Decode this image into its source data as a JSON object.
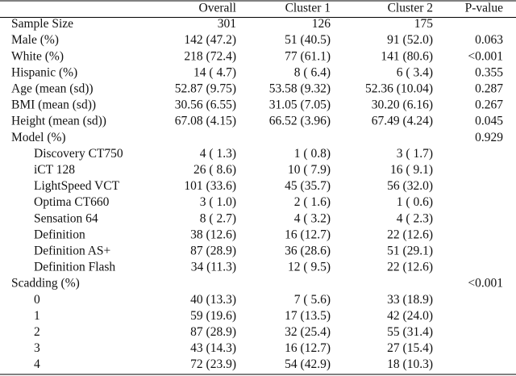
{
  "table": {
    "columns": [
      "Overall",
      "Cluster 1",
      "Cluster 2",
      "P-value"
    ],
    "rows": [
      {
        "label": "Sample Size",
        "cells": [
          "301",
          "126",
          "175",
          null
        ]
      },
      {
        "label": "Male (%)",
        "cells": [
          "142 (47.2)",
          "51 (40.5)",
          "91 (52.0)",
          "0.063"
        ]
      },
      {
        "label": "White (%)",
        "cells": [
          "218 (72.4)",
          "77 (61.1)",
          "141 (80.6)",
          "<0.001"
        ]
      },
      {
        "label": "Hispanic (%)",
        "cells": [
          "14 ( 4.7)",
          "8 ( 6.4)",
          "6 ( 3.4)",
          "0.355"
        ]
      },
      {
        "label": "Age (mean (sd))",
        "cells": [
          "52.87 (9.75)",
          "53.58 (9.32)",
          "52.36 (10.04)",
          "0.287"
        ]
      },
      {
        "label": "BMI (mean (sd))",
        "cells": [
          "30.56 (6.55)",
          "31.05 (7.05)",
          "30.20 (6.16)",
          "0.267"
        ]
      },
      {
        "label": "Height (mean (sd))",
        "cells": [
          "67.08 (4.15)",
          "66.52 (3.96)",
          "67.49 (4.24)",
          "0.045"
        ]
      },
      {
        "label": "Model (%)",
        "cells": [
          null,
          null,
          null,
          "0.929"
        ],
        "sub_rows": [
          {
            "label": "Discovery CT750",
            "cells": [
              "4 ( 1.3)",
              "1 ( 0.8)",
              "3 ( 1.7)",
              null
            ]
          },
          {
            "label": "iCT 128",
            "cells": [
              "26 ( 8.6)",
              "10 ( 7.9)",
              "16 ( 9.1)",
              null
            ]
          },
          {
            "label": "LightSpeed VCT",
            "cells": [
              "101 (33.6)",
              "45 (35.7)",
              "56 (32.0)",
              null
            ]
          },
          {
            "label": "Optima CT660",
            "cells": [
              "3 ( 1.0)",
              "2 ( 1.6)",
              "1 ( 0.6)",
              null
            ]
          },
          {
            "label": "Sensation 64",
            "cells": [
              "8 ( 2.7)",
              "4 ( 3.2)",
              "4 ( 2.3)",
              null
            ]
          },
          {
            "label": "Definition",
            "cells": [
              "38 (12.6)",
              "16 (12.7)",
              "22 (12.6)",
              null
            ]
          },
          {
            "label": "Definition AS+",
            "cells": [
              "87 (28.9)",
              "36 (28.6)",
              "51 (29.1)",
              null
            ]
          },
          {
            "label": "Definition Flash",
            "cells": [
              "34 (11.3)",
              "12 ( 9.5)",
              "22 (12.6)",
              null
            ]
          }
        ]
      },
      {
        "label": "Scadding (%)",
        "cells": [
          null,
          null,
          null,
          "<0.001"
        ],
        "sub_rows": [
          {
            "label": "0",
            "cells": [
              "40 (13.3)",
              "7 ( 5.6)",
              "33 (18.9)",
              null
            ]
          },
          {
            "label": "1",
            "cells": [
              "59 (19.6)",
              "17 (13.5)",
              "42 (24.0)",
              null
            ]
          },
          {
            "label": "2",
            "cells": [
              "87 (28.9)",
              "32 (25.4)",
              "55 (31.4)",
              null
            ]
          },
          {
            "label": "3",
            "cells": [
              "43 (14.3)",
              "16 (12.7)",
              "27 (15.4)",
              null
            ]
          },
          {
            "label": "4",
            "cells": [
              "72 (23.9)",
              "54 (42.9)",
              "18 (10.3)",
              null
            ]
          }
        ]
      }
    ]
  }
}
